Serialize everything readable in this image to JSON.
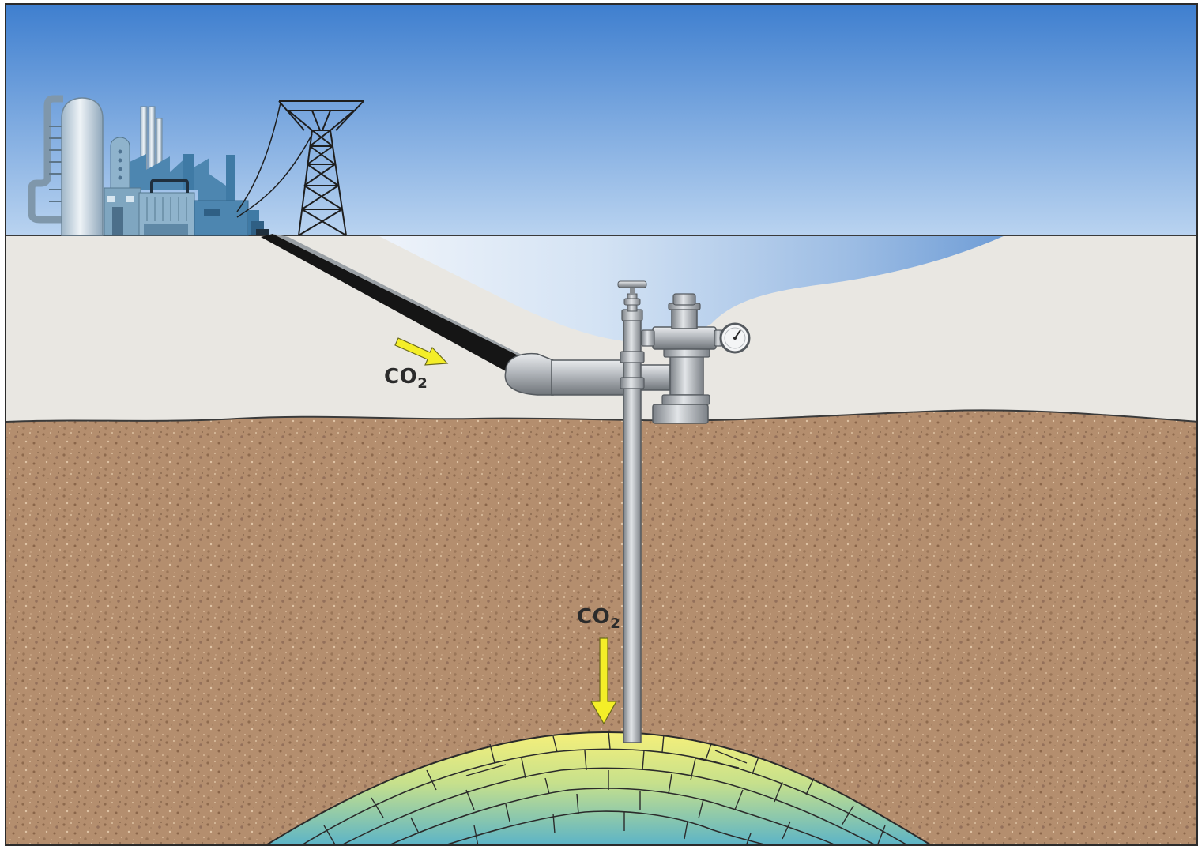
{
  "labels": {
    "pipeline_co2": {
      "main": "CO",
      "sub": "2"
    },
    "injection_co2": {
      "main": "CO",
      "sub": "2"
    }
  },
  "colors": {
    "sky_top": "#3f7fcf",
    "sky_bottom": "#b9d3f0",
    "topsoil": "#e8e6e1",
    "subsoil": "#b08a6a",
    "reservoir_top": "#f4ee7a",
    "reservoir_bottom": "#5fb7c9",
    "arrow": "#f5ef2a",
    "pipe": "#a9adb2",
    "building": "#5a8fb6"
  },
  "icons": [
    "power-plant-icon",
    "power-tower-icon",
    "wellhead-icon",
    "pressure-gauge-icon"
  ]
}
